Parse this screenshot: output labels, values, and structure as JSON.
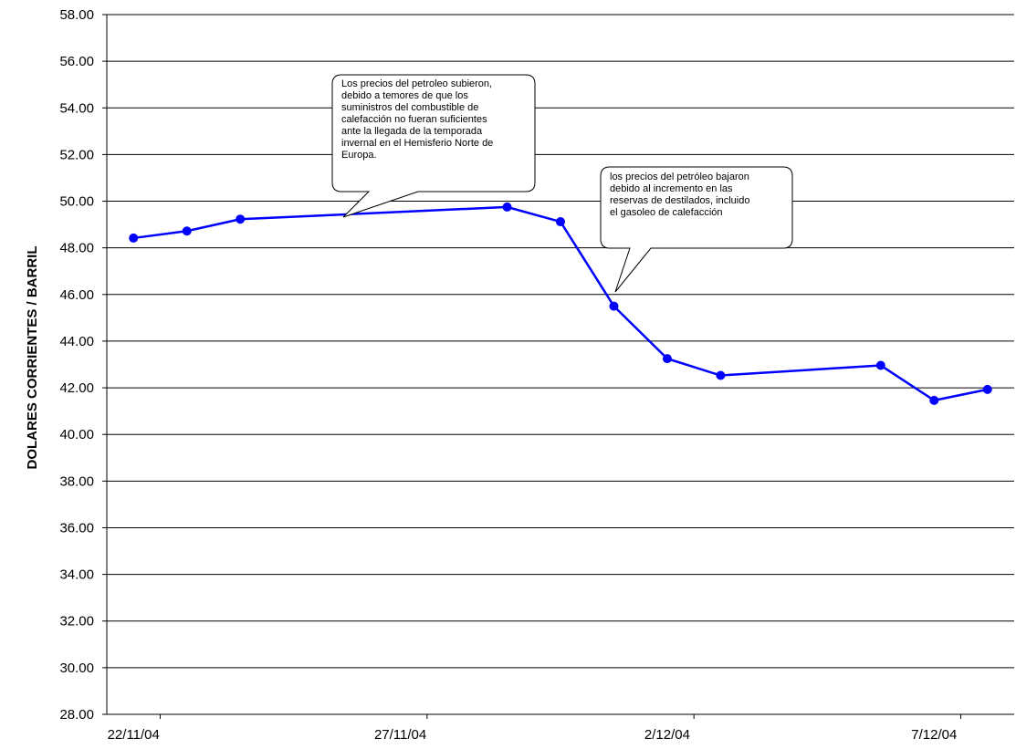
{
  "chart_data": {
    "type": "line",
    "ylabel": "DOLARES CORRIENTES / BARRIL",
    "xlabel": "",
    "title": "",
    "ylim": [
      28,
      58
    ],
    "y_ticks": [
      "28.00",
      "30.00",
      "32.00",
      "34.00",
      "36.00",
      "38.00",
      "40.00",
      "42.00",
      "44.00",
      "46.00",
      "48.00",
      "50.00",
      "52.00",
      "54.00",
      "56.00",
      "58.00"
    ],
    "x_tick_labels": [
      "22/11/04",
      "27/11/04",
      "2/12/04",
      "7/12/04"
    ],
    "x_tick_dates": [
      "2004-11-22",
      "2004-11-27",
      "2004-12-02",
      "2004-12-07"
    ],
    "xlim": [
      "2004-11-22",
      "2004-12-08"
    ],
    "grid": "horizontal",
    "line_color": "#0000ff",
    "series": [
      {
        "x": [
          "2004-11-22",
          "2004-11-23",
          "2004-11-24",
          "2004-11-29",
          "2004-11-30",
          "2004-12-01",
          "2004-12-02",
          "2004-12-03",
          "2004-12-06",
          "2004-12-07",
          "2004-12-08"
        ],
        "values": [
          48.42,
          48.72,
          49.23,
          49.75,
          49.12,
          45.5,
          43.25,
          42.53,
          42.96,
          41.46,
          41.93
        ]
      }
    ]
  },
  "annotations": [
    {
      "text": "Los precios del petroleo subieron,\ndebido a temores de que los\nsuministros del combustible de\ncalefacción no fueran suficientes\nante la llegada  de la temporada\ninvernal en el Hemisferio Norte de\nEuropa."
    },
    {
      "text": "los precios del petróleo bajaron\ndebido al incremento en las\nreservas de destilados, incluido\nel gasoleo de calefacción"
    }
  ]
}
